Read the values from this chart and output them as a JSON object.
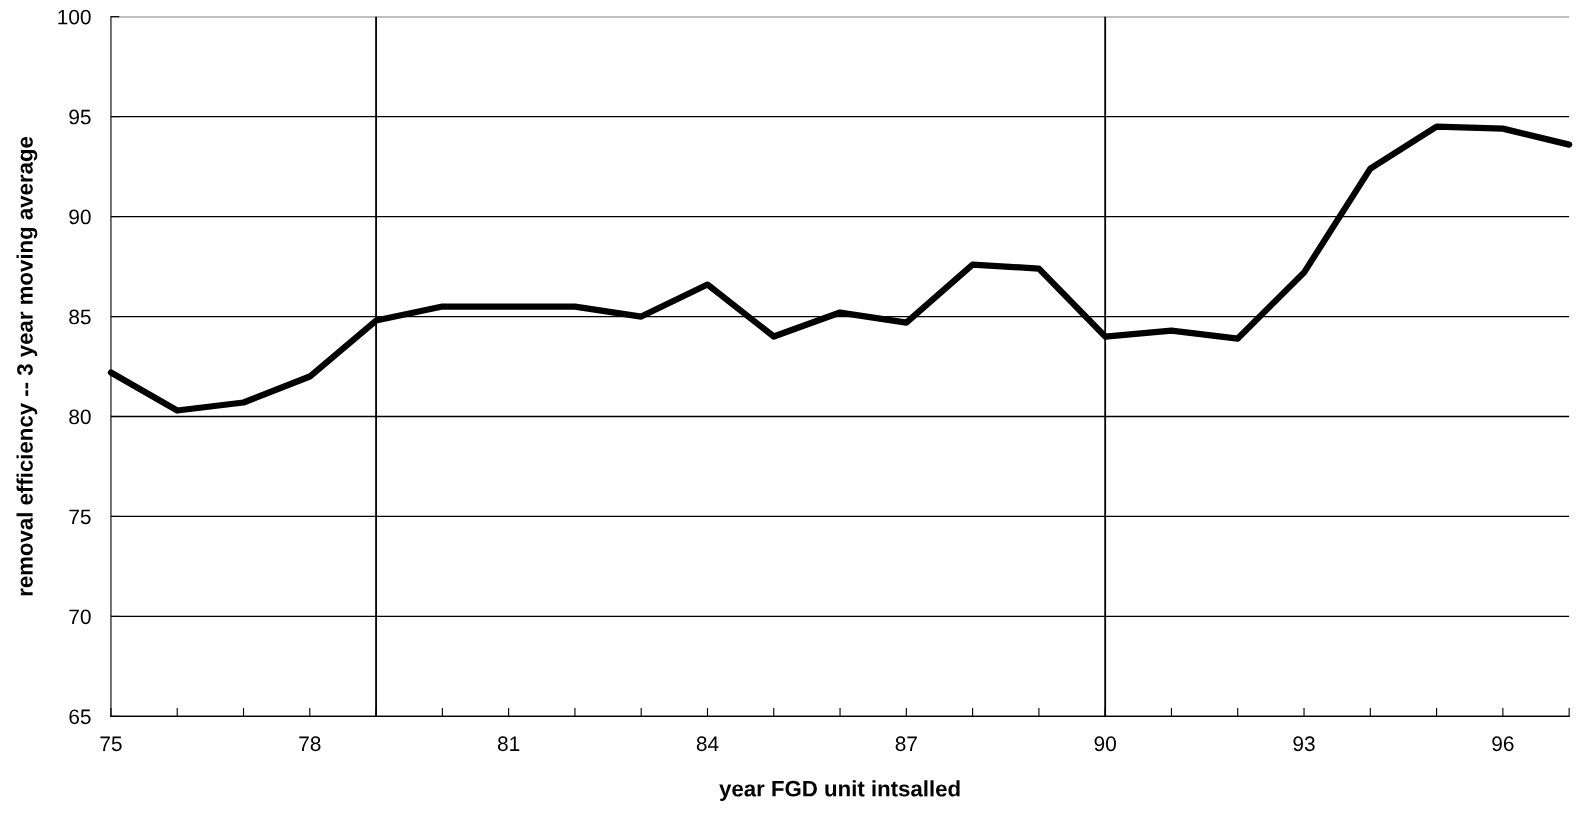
{
  "chart_data": {
    "type": "line",
    "xlabel": "year FGD unit intsalled",
    "ylabel": "removal efficiency -- 3 year moving average",
    "x": [
      75,
      76,
      77,
      78,
      79,
      80,
      81,
      82,
      83,
      84,
      85,
      86,
      87,
      88,
      89,
      90,
      91,
      92,
      93,
      94,
      95,
      96,
      97
    ],
    "series": [
      {
        "color": "#000000",
        "values": [
          82.2,
          80.3,
          80.7,
          82.0,
          84.8,
          85.5,
          85.5,
          85.5,
          85.0,
          86.6,
          84.0,
          85.2,
          84.7,
          87.6,
          87.4,
          84.0,
          84.3,
          83.9,
          87.2,
          92.4,
          94.5,
          94.4,
          93.6
        ]
      }
    ],
    "xlim": [
      75,
      97
    ],
    "ylim": [
      65,
      100
    ],
    "xticks": [
      75,
      {
        "value": 76,
        "label": null
      },
      {
        "value": 77,
        "label": null
      },
      78,
      {
        "value": 79,
        "label": null
      },
      {
        "value": 80,
        "label": null
      },
      81,
      {
        "value": 82,
        "label": null
      },
      {
        "value": 83,
        "label": null
      },
      84,
      {
        "value": 85,
        "label": null
      },
      {
        "value": 86,
        "label": null
      },
      87,
      {
        "value": 88,
        "label": null
      },
      {
        "value": 89,
        "label": null
      },
      90,
      {
        "value": 91,
        "label": null
      },
      {
        "value": 92,
        "label": null
      },
      93,
      {
        "value": 94,
        "label": null
      },
      {
        "value": 95,
        "label": null
      },
      96,
      {
        "value": 97,
        "label": null
      }
    ],
    "yticks": [
      65,
      70,
      75,
      80,
      85,
      90,
      95,
      100
    ],
    "grid": "y",
    "marker": "none",
    "line_style": "solid",
    "ref_lines": [
      {
        "axis": "x",
        "value": 79,
        "color": "#000000"
      },
      {
        "axis": "x",
        "value": 90,
        "color": "#000000"
      }
    ]
  }
}
